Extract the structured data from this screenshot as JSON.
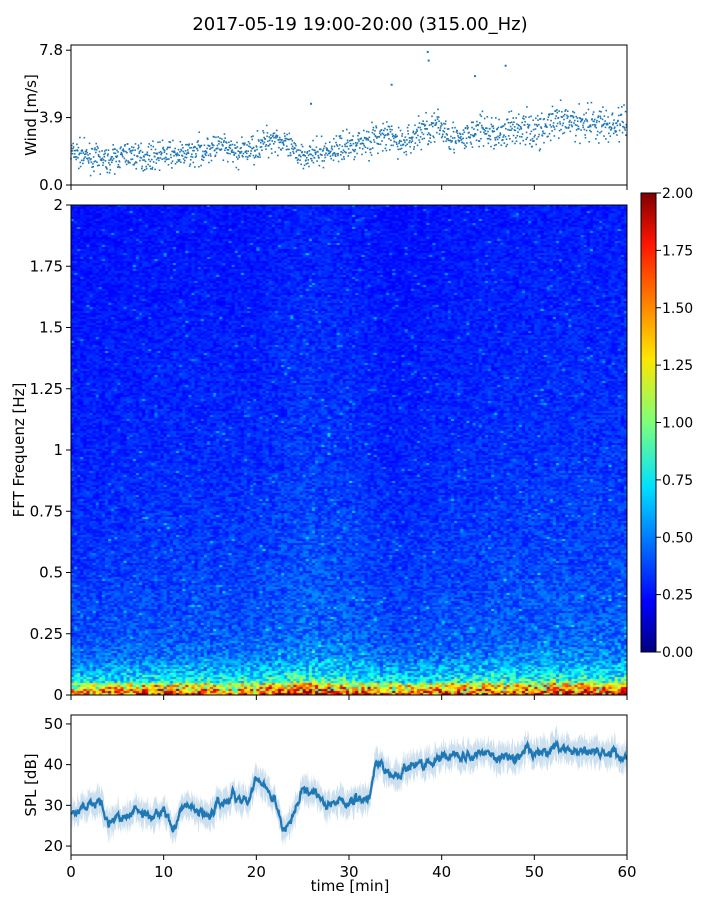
{
  "chart_data": [
    {
      "type": "scatter",
      "title": "2017-05-19 19:00-20:00 (315.00_Hz)",
      "ylabel": "Wind [m/s]",
      "xlim": [
        0,
        60
      ],
      "ylim": [
        0,
        8.1
      ],
      "yticks": [
        "0.0",
        "3.9",
        "7.8"
      ],
      "ytick_values": [
        0,
        3.9,
        7.8
      ],
      "trend_x": [
        0,
        2,
        4,
        6,
        8,
        10,
        12,
        14,
        16,
        18,
        20,
        22,
        24,
        26,
        28,
        30,
        32,
        34,
        36,
        38,
        40,
        42,
        44,
        46,
        48,
        50,
        52,
        54,
        56,
        58,
        60
      ],
      "trend_y": [
        1.9,
        1.6,
        1.4,
        1.8,
        1.6,
        1.8,
        1.7,
        2.0,
        2.2,
        1.8,
        2.2,
        2.8,
        1.9,
        1.7,
        2.0,
        2.3,
        2.6,
        2.8,
        2.4,
        3.2,
        3.3,
        2.5,
        3.2,
        2.9,
        3.4,
        3.1,
        3.5,
        3.6,
        3.7,
        3.4,
        3.6
      ],
      "outliers": [
        [
          38.5,
          7.7
        ],
        [
          38.6,
          7.2
        ],
        [
          43.6,
          6.3
        ],
        [
          46.9,
          6.9
        ],
        [
          25.9,
          4.7
        ],
        [
          34.6,
          5.8
        ]
      ],
      "color": "#1f77b4"
    },
    {
      "type": "heatmap",
      "ylabel": "FFT Frequenz [Hz]",
      "ylim": [
        0,
        2
      ],
      "yticks": [
        "0",
        "0.25",
        "0.5",
        "0.75",
        "1",
        "1.25",
        "1.5",
        "1.75",
        "2"
      ],
      "xlim": [
        0,
        60
      ],
      "colormap": "jet",
      "clim": [
        0,
        2
      ],
      "colorbar_ticks": [
        "0.00",
        "0.25",
        "0.50",
        "0.75",
        "1.00",
        "1.25",
        "1.50",
        "1.75",
        "2.00"
      ],
      "freq_profile_hz": [
        0,
        0.02,
        0.05,
        0.1,
        0.15,
        0.25,
        0.5,
        1.0,
        2.0
      ],
      "freq_profile_level": [
        1.6,
        1.2,
        0.8,
        0.55,
        0.4,
        0.3,
        0.25,
        0.2,
        0.15
      ],
      "time_boost_x": [
        0,
        10,
        20,
        25,
        30,
        35,
        40,
        50,
        60
      ],
      "time_boost": [
        0.9,
        1.0,
        1.0,
        1.2,
        1.1,
        0.9,
        1.0,
        1.1,
        1.1
      ]
    },
    {
      "type": "line",
      "ylabel": "SPL [dB]",
      "xlabel": "time [min]",
      "xlim": [
        0,
        60
      ],
      "ylim": [
        17.8,
        52.2
      ],
      "yticks": [
        "20",
        "30",
        "40",
        "50"
      ],
      "ytick_values": [
        20,
        30,
        40,
        50
      ],
      "xticks": [
        "0",
        "10",
        "20",
        "30",
        "40",
        "50",
        "60"
      ],
      "xtick_values": [
        0,
        10,
        20,
        30,
        40,
        50,
        60
      ],
      "x": [
        0,
        1,
        2,
        3,
        4,
        5,
        6,
        7,
        8,
        9,
        10,
        11,
        12,
        13,
        14,
        15,
        16,
        17,
        18,
        19,
        20,
        21,
        22,
        23,
        24,
        25,
        26,
        27,
        28,
        29,
        30,
        31,
        32,
        33,
        34,
        35,
        36,
        37,
        38,
        39,
        40,
        41,
        42,
        43,
        44,
        45,
        46,
        47,
        48,
        49,
        50,
        51,
        52,
        53,
        54,
        55,
        56,
        57,
        58,
        59,
        60
      ],
      "y": [
        28,
        29,
        30,
        31,
        25,
        27,
        27,
        28,
        27,
        28,
        29,
        24,
        30,
        29,
        28,
        27,
        31,
        32,
        32,
        31,
        37,
        34,
        31,
        25,
        28,
        34,
        33,
        31,
        30,
        31,
        30,
        31,
        31,
        41,
        39,
        37,
        39,
        40,
        41,
        40,
        42,
        42,
        41,
        42,
        43,
        43,
        42,
        42,
        42,
        43,
        43,
        43,
        43,
        44,
        43,
        43,
        43,
        43,
        43,
        43,
        43
      ],
      "color": "#1f77b4"
    }
  ]
}
